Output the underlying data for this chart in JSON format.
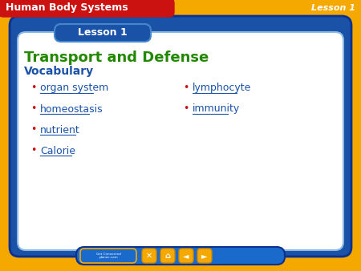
{
  "bg_color": "#F5A800",
  "header_bar_color": "#CC1111",
  "header_text": "Human Body Systems",
  "header_text_color": "#FFFFFF",
  "lesson_top_right": "Lesson 1",
  "lesson_top_right_color": "#FFFFFF",
  "outer_frame_color": "#1A52A8",
  "outer_frame_edge": "#0A3090",
  "inner_card_color": "#FFFFFF",
  "inner_card_edge": "#8BB8E0",
  "lesson_badge_color": "#1A52A8",
  "lesson_badge_edge": "#4488CC",
  "lesson_badge_text": "Lesson 1",
  "lesson_badge_text_color": "#FFFFFF",
  "title_text": "Transport and Defense",
  "title_color": "#228800",
  "vocab_label": "Vocabulary",
  "vocab_color": "#1A52A8",
  "bullet_color": "#CC1111",
  "link_color": "#1A52A8",
  "left_items": [
    "organ system",
    "homeostasis",
    "nutrient",
    "Calorie"
  ],
  "right_items": [
    "lymphocyte",
    "immunity"
  ],
  "footer_bar_color": "#1A6ACC",
  "footer_bar_edge": "#0A3090",
  "nav_btn_color": "#F5A800",
  "nav_btn_edge": "#CC8800",
  "get_connected_color": "#1A6ACC",
  "get_connected_edge": "#F5A800"
}
